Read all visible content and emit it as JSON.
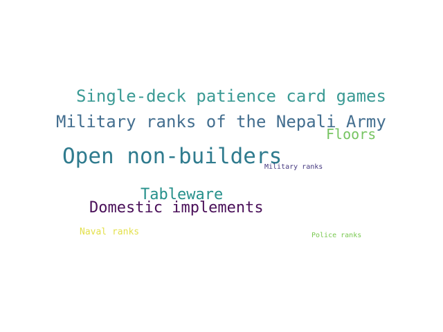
{
  "words": [
    {
      "text": "Single-deck patience card games",
      "color": "#3a9a94"
    },
    {
      "text": "Military ranks of the Nepali Army",
      "color": "#436e8f"
    },
    {
      "text": "Floors",
      "color": "#76c461"
    },
    {
      "text": "Open non-builders",
      "color": "#2f7b8e"
    },
    {
      "text": "Military ranks",
      "color": "#44377f"
    },
    {
      "text": "Tableware",
      "color": "#26908b"
    },
    {
      "text": "Domestic implements",
      "color": "#4a1059"
    },
    {
      "text": "Naval ranks",
      "color": "#e3e04c"
    },
    {
      "text": "Police ranks",
      "color": "#78c84f"
    }
  ]
}
